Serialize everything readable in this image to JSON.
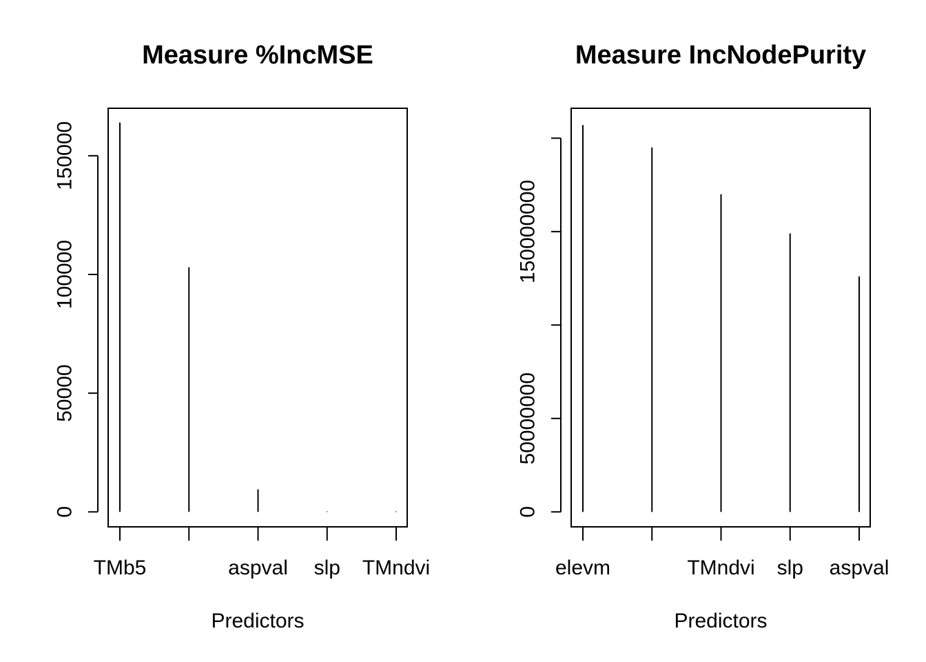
{
  "chart_data": [
    {
      "type": "bar",
      "title": "Measure %IncMSE",
      "xlabel": "Predictors",
      "ylabel": "",
      "categories": [
        "TMb5",
        "",
        "aspval",
        "slp",
        "TMndvi"
      ],
      "values": [
        164000,
        103000,
        9500,
        200,
        200
      ],
      "ylim": [
        -6300,
        170000
      ],
      "yticks": [
        0,
        50000,
        100000,
        150000
      ],
      "ytick_labels": [
        "0",
        "50000",
        "100000",
        "150000"
      ],
      "grid": false,
      "legend": "none"
    },
    {
      "type": "bar",
      "title": "Measure IncNodePurity",
      "xlabel": "Predictors",
      "ylabel": "",
      "categories": [
        "elevm",
        "",
        "TMndvi",
        "slp",
        "aspval"
      ],
      "values": [
        207000000,
        195000000,
        170000000,
        149000000,
        126000000
      ],
      "ylim": [
        -8000000,
        216000000
      ],
      "yticks": [
        0,
        50000000,
        100000000,
        150000000,
        200000000
      ],
      "ytick_labels": [
        "0",
        "50000000",
        "",
        "150000000",
        ""
      ],
      "grid": false,
      "legend": "none"
    }
  ]
}
